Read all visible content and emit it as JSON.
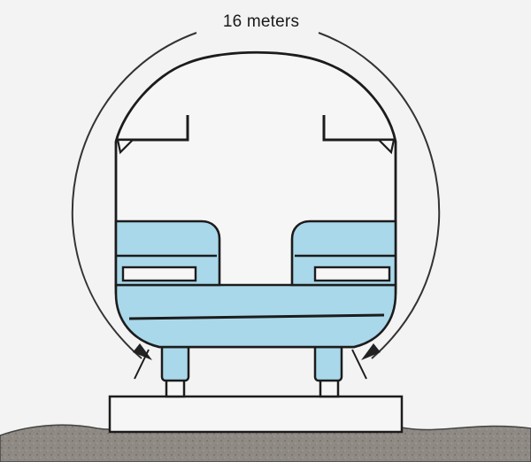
{
  "diagram": {
    "dimension_label": "16 meters"
  },
  "colors": {
    "background": "#f3f3f3",
    "outline": "#1c1c1c",
    "seat_fill": "#a9d8ea",
    "ground_fill": "#8f8a84",
    "arrow": "#333333"
  }
}
